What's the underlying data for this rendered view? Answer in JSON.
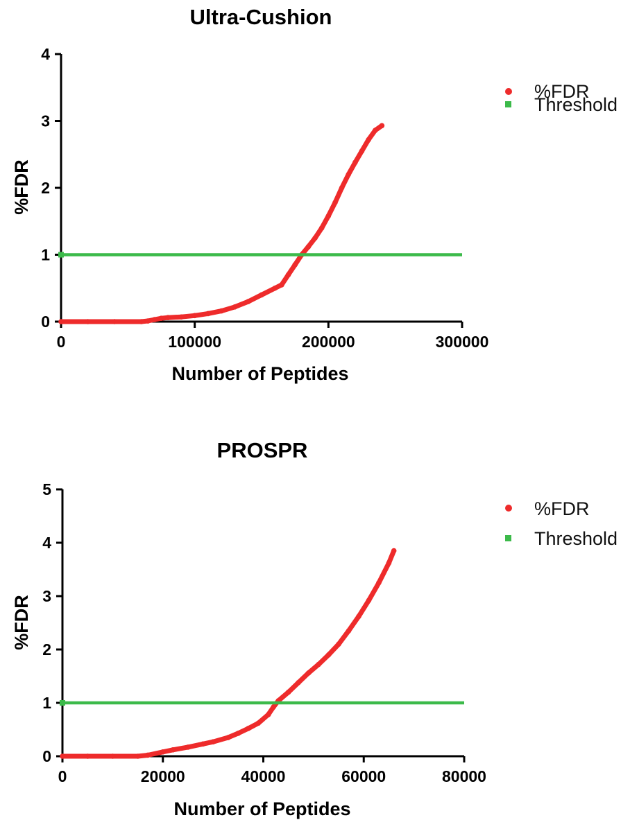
{
  "colors": {
    "fdr": "#ee2b2b",
    "threshold": "#3cba4a",
    "axis": "#000000"
  },
  "chart_data": [
    {
      "type": "line",
      "title": "Ultra-Cushion",
      "xlabel": "Number of Peptides",
      "ylabel": "%FDR",
      "xlim": [
        0,
        300000
      ],
      "ylim": [
        0,
        4
      ],
      "xticks": [
        0,
        100000,
        200000,
        300000
      ],
      "xtick_labels": [
        "0",
        "100000",
        "200000",
        "300000"
      ],
      "yticks": [
        0,
        1,
        2,
        3,
        4
      ],
      "ytick_labels": [
        "0",
        "1",
        "2",
        "3",
        "4"
      ],
      "legend_position": "top-right",
      "series": [
        {
          "name": "%FDR",
          "marker": "circle",
          "color_key": "fdr",
          "x": [
            0,
            20000,
            40000,
            60000,
            65000,
            70000,
            75000,
            80000,
            90000,
            100000,
            110000,
            120000,
            130000,
            140000,
            150000,
            160000,
            165000,
            170000,
            175000,
            180000,
            185000,
            190000,
            195000,
            200000,
            205000,
            210000,
            215000,
            220000,
            225000,
            230000,
            235000,
            240000
          ],
          "y": [
            0,
            0,
            0,
            0,
            0.01,
            0.03,
            0.05,
            0.06,
            0.07,
            0.09,
            0.12,
            0.16,
            0.22,
            0.3,
            0.4,
            0.5,
            0.55,
            0.7,
            0.85,
            1.0,
            1.12,
            1.25,
            1.4,
            1.58,
            1.78,
            2.0,
            2.2,
            2.38,
            2.55,
            2.72,
            2.86,
            2.93
          ]
        },
        {
          "name": "Threshold",
          "marker": "square",
          "color_key": "threshold",
          "x": [
            0,
            300000
          ],
          "y": [
            1,
            1
          ]
        }
      ]
    },
    {
      "type": "line",
      "title": "PROSPR",
      "xlabel": "Number of Peptides",
      "ylabel": "%FDR",
      "xlim": [
        0,
        80000
      ],
      "ylim": [
        0,
        5
      ],
      "xticks": [
        0,
        20000,
        40000,
        60000,
        80000
      ],
      "xtick_labels": [
        "0",
        "20000",
        "40000",
        "60000",
        "80000"
      ],
      "yticks": [
        0,
        1,
        2,
        3,
        4,
        5
      ],
      "ytick_labels": [
        "0",
        "1",
        "2",
        "3",
        "4",
        "5"
      ],
      "legend_position": "top-right",
      "series": [
        {
          "name": "%FDR",
          "marker": "circle",
          "color_key": "fdr",
          "x": [
            0,
            5000,
            10000,
            15000,
            17000,
            20000,
            22000,
            25000,
            28000,
            30000,
            33000,
            35000,
            37000,
            39000,
            41000,
            42000,
            43000,
            45000,
            47000,
            49000,
            51000,
            53000,
            55000,
            57000,
            59000,
            61000,
            63000,
            65000,
            66000
          ],
          "y": [
            0,
            0,
            0,
            0,
            0.02,
            0.08,
            0.12,
            0.17,
            0.23,
            0.27,
            0.35,
            0.43,
            0.52,
            0.62,
            0.78,
            0.92,
            1.04,
            1.2,
            1.38,
            1.56,
            1.72,
            1.9,
            2.1,
            2.35,
            2.62,
            2.92,
            3.25,
            3.62,
            3.85
          ]
        },
        {
          "name": "Threshold",
          "marker": "square",
          "color_key": "threshold",
          "x": [
            0,
            80000
          ],
          "y": [
            1,
            1
          ]
        }
      ]
    }
  ]
}
